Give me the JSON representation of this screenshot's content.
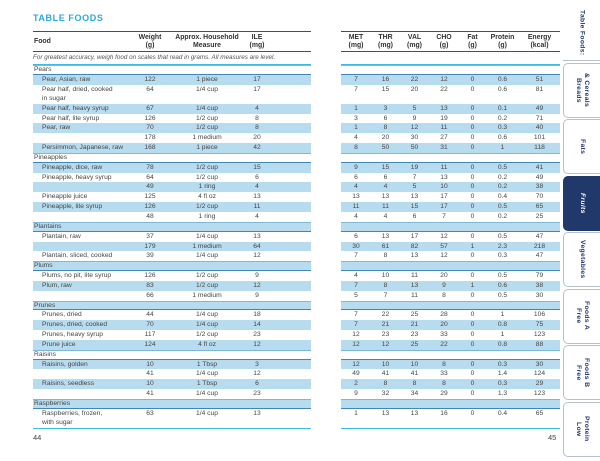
{
  "page_left": {
    "title": "TABLE FOODS",
    "page_number": "44",
    "note": "For greatest accuracy, weigh food on scales that read in grams. All measures are level.",
    "columns": [
      "Food",
      "Weight\n(g)",
      "Approx. Household\nMeasure",
      "ILE\n(mg)"
    ]
  },
  "page_right": {
    "page_number": "45",
    "columns": [
      "MET\n(mg)",
      "THR\n(mg)",
      "VAL\n(mg)",
      "CHO\n(g)",
      "Fat\n(g)",
      "Protein\n(g)",
      "Energy\n(kcal)"
    ]
  },
  "rows": [
    {
      "type": "category",
      "food": "Pears"
    },
    {
      "type": "item",
      "food": "Pear, Asian, raw",
      "weight": "122",
      "measure": "1 piece",
      "ile": "17",
      "met": "7",
      "thr": "16",
      "val": "22",
      "cho": "12",
      "fat": "0",
      "protein": "0.6",
      "energy": "51"
    },
    {
      "type": "item",
      "tall": true,
      "food": "Pear half, dried, cooked\nin sugar",
      "weight": "64",
      "measure": "1/4 cup",
      "ile": "17",
      "met": "7",
      "thr": "15",
      "val": "20",
      "cho": "22",
      "fat": "0",
      "protein": "0.6",
      "energy": "81"
    },
    {
      "type": "item",
      "food": "Pear half, heavy syrup",
      "weight": "67",
      "measure": "1/4 cup",
      "ile": "4",
      "met": "1",
      "thr": "3",
      "val": "5",
      "cho": "13",
      "fat": "0",
      "protein": "0.1",
      "energy": "49"
    },
    {
      "type": "item",
      "food": "Pear half, lite syrup",
      "weight": "126",
      "measure": "1/2 cup",
      "ile": "8",
      "met": "3",
      "thr": "6",
      "val": "9",
      "cho": "19",
      "fat": "0",
      "protein": "0.2",
      "energy": "71"
    },
    {
      "type": "item",
      "food": "Pear, raw",
      "weight": "70",
      "measure": "1/2 cup",
      "ile": "8",
      "met": "1",
      "thr": "8",
      "val": "12",
      "cho": "11",
      "fat": "0",
      "protein": "0.3",
      "energy": "40"
    },
    {
      "type": "item",
      "food": "",
      "weight": "178",
      "measure": "1 medium",
      "ile": "20",
      "met": "4",
      "thr": "20",
      "val": "30",
      "cho": "27",
      "fat": "0",
      "protein": "0.6",
      "energy": "101"
    },
    {
      "type": "item",
      "food": "Persimmon, Japanese, raw",
      "weight": "168",
      "measure": "1 piece",
      "ile": "42",
      "met": "8",
      "thr": "50",
      "val": "50",
      "cho": "31",
      "fat": "0",
      "protein": "1",
      "energy": "118"
    },
    {
      "type": "category",
      "food": "Pineapples"
    },
    {
      "type": "item",
      "food": "Pineapple, dice, raw",
      "weight": "78",
      "measure": "1/2 cup",
      "ile": "15",
      "met": "9",
      "thr": "15",
      "val": "19",
      "cho": "11",
      "fat": "0",
      "protein": "0.5",
      "energy": "41"
    },
    {
      "type": "item",
      "food": "Pineapple, heavy syrup",
      "weight": "64",
      "measure": "1/2 cup",
      "ile": "6",
      "met": "6",
      "thr": "6",
      "val": "7",
      "cho": "13",
      "fat": "0",
      "protein": "0.2",
      "energy": "49"
    },
    {
      "type": "item",
      "food": "",
      "weight": "49",
      "measure": "1 ring",
      "ile": "4",
      "met": "4",
      "thr": "4",
      "val": "5",
      "cho": "10",
      "fat": "0",
      "protein": "0.2",
      "energy": "38"
    },
    {
      "type": "item",
      "food": "Pineapple juice",
      "weight": "125",
      "measure": "4 fl oz",
      "ile": "13",
      "met": "13",
      "thr": "13",
      "val": "13",
      "cho": "17",
      "fat": "0",
      "protein": "0.4",
      "energy": "70"
    },
    {
      "type": "item",
      "food": "Pineapple, lite syrup",
      "weight": "126",
      "measure": "1/2 cup",
      "ile": "11",
      "met": "11",
      "thr": "11",
      "val": "15",
      "cho": "17",
      "fat": "0",
      "protein": "0.5",
      "energy": "65"
    },
    {
      "type": "item",
      "food": "",
      "weight": "48",
      "measure": "1 ring",
      "ile": "4",
      "met": "4",
      "thr": "4",
      "val": "6",
      "cho": "7",
      "fat": "0",
      "protein": "0.2",
      "energy": "25"
    },
    {
      "type": "category",
      "food": "Plantains"
    },
    {
      "type": "item",
      "food": "Plantain, raw",
      "weight": "37",
      "measure": "1/4 cup",
      "ile": "13",
      "met": "6",
      "thr": "13",
      "val": "17",
      "cho": "12",
      "fat": "0",
      "protein": "0.5",
      "energy": "47"
    },
    {
      "type": "item",
      "food": "",
      "weight": "179",
      "measure": "1 medium",
      "ile": "64",
      "met": "30",
      "thr": "61",
      "val": "82",
      "cho": "57",
      "fat": "1",
      "protein": "2.3",
      "energy": "218"
    },
    {
      "type": "item",
      "food": "Plantain, sliced, cooked",
      "weight": "39",
      "measure": "1/4 cup",
      "ile": "12",
      "met": "7",
      "thr": "8",
      "val": "13",
      "cho": "12",
      "fat": "0",
      "protein": "0.3",
      "energy": "47"
    },
    {
      "type": "category",
      "food": "Plums"
    },
    {
      "type": "item",
      "food": "Plums, no pit, lite syrup",
      "weight": "126",
      "measure": "1/2 cup",
      "ile": "9",
      "met": "4",
      "thr": "10",
      "val": "11",
      "cho": "20",
      "fat": "0",
      "protein": "0.5",
      "energy": "79"
    },
    {
      "type": "item",
      "food": "Plum, raw",
      "weight": "83",
      "measure": "1/2 cup",
      "ile": "12",
      "met": "7",
      "thr": "8",
      "val": "13",
      "cho": "9",
      "fat": "1",
      "protein": "0.6",
      "energy": "38"
    },
    {
      "type": "item",
      "food": "",
      "weight": "66",
      "measure": "1 medium",
      "ile": "9",
      "met": "5",
      "thr": "7",
      "val": "11",
      "cho": "8",
      "fat": "0",
      "protein": "0.5",
      "energy": "30"
    },
    {
      "type": "category",
      "food": "Prunes"
    },
    {
      "type": "item",
      "food": "Prunes, dried",
      "weight": "44",
      "measure": "1/4 cup",
      "ile": "18",
      "met": "7",
      "thr": "22",
      "val": "25",
      "cho": "28",
      "fat": "0",
      "protein": "1",
      "energy": "106"
    },
    {
      "type": "item",
      "food": "Prunes, dried, cooked",
      "weight": "70",
      "measure": "1/4 cup",
      "ile": "14",
      "met": "7",
      "thr": "21",
      "val": "21",
      "cho": "20",
      "fat": "0",
      "protein": "0.8",
      "energy": "75"
    },
    {
      "type": "item",
      "food": "Prunes, heavy syrup",
      "weight": "117",
      "measure": "1/2 cup",
      "ile": "23",
      "met": "12",
      "thr": "23",
      "val": "23",
      "cho": "33",
      "fat": "0",
      "protein": "1",
      "energy": "123"
    },
    {
      "type": "item",
      "food": "Prune juice",
      "weight": "124",
      "measure": "4 fl oz",
      "ile": "12",
      "met": "12",
      "thr": "12",
      "val": "25",
      "cho": "22",
      "fat": "0",
      "protein": "0.8",
      "energy": "88"
    },
    {
      "type": "category",
      "food": "Raisins"
    },
    {
      "type": "item",
      "food": "Raisins, golden",
      "weight": "10",
      "measure": "1 Tbsp",
      "ile": "3",
      "met": "12",
      "thr": "10",
      "val": "10",
      "cho": "8",
      "fat": "0",
      "protein": "0.3",
      "energy": "30"
    },
    {
      "type": "item",
      "food": "",
      "weight": "41",
      "measure": "1/4 cup",
      "ile": "12",
      "met": "49",
      "thr": "41",
      "val": "41",
      "cho": "33",
      "fat": "0",
      "protein": "1.4",
      "energy": "124"
    },
    {
      "type": "item",
      "food": "Raisins, seedless",
      "weight": "10",
      "measure": "1 Tbsp",
      "ile": "6",
      "met": "2",
      "thr": "8",
      "val": "8",
      "cho": "8",
      "fat": "0",
      "protein": "0.3",
      "energy": "29"
    },
    {
      "type": "item",
      "food": "",
      "weight": "41",
      "measure": "1/4 cup",
      "ile": "23",
      "met": "9",
      "thr": "32",
      "val": "34",
      "cho": "29",
      "fat": "0",
      "protein": "1.3",
      "energy": "123"
    },
    {
      "type": "category",
      "food": "Raspberries"
    },
    {
      "type": "item",
      "tall": true,
      "food": "Raspberries, frozen,\nwith sugar",
      "weight": "63",
      "measure": "1/4 cup",
      "ile": "13",
      "met": "1",
      "thr": "13",
      "val": "13",
      "cho": "16",
      "fat": "0",
      "protein": "0.4",
      "energy": "65"
    }
  ],
  "tabs": [
    {
      "label": "Table Foods:",
      "active": false
    },
    {
      "label": "Breads\n& Cereals",
      "active": false
    },
    {
      "label": "Fats",
      "active": false
    },
    {
      "label": "Fruits",
      "active": true
    },
    {
      "label": "Vegetables",
      "active": false
    },
    {
      "label": "Free\nFoods A",
      "active": false
    },
    {
      "label": "Free\nFoods B",
      "active": false
    },
    {
      "label": "Low\nProtein",
      "active": false
    }
  ],
  "colors": {
    "title_accent": "#2aa9df",
    "row_highlight": "#b8dcef",
    "rule_cyan": "#3fb9e5",
    "rule_dark": "#4d4d4d",
    "category_rule": "#4186b4",
    "tab_navy": "#21386b",
    "tab_border": "#b8c0ca"
  }
}
